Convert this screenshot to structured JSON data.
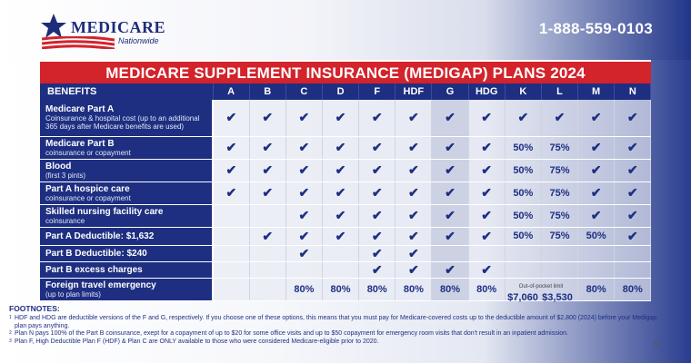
{
  "header": {
    "logo_name": "MEDICARE",
    "logo_sub": "Nationwide",
    "phone": "1-888-559-0103",
    "title": "MEDICARE SUPPLEMENT INSURANCE (MEDIGAP) PLANS 2024"
  },
  "table": {
    "benefits_header": "BENEFITS",
    "plans": [
      "A",
      "B",
      "C",
      "D",
      "F",
      "HDF",
      "G",
      "HDG",
      "K",
      "L",
      "M",
      "N"
    ],
    "rows": [
      {
        "title": "Medicare Part A",
        "sub": "Coinsurance & hospital cost (up to an additional 365 days after Medicare benefits are used)",
        "cells": [
          "✔",
          "✔",
          "✔",
          "✔",
          "✔",
          "✔",
          "✔",
          "✔",
          "✔",
          "✔",
          "✔",
          "✔"
        ]
      },
      {
        "title": "Medicare Part B",
        "sub": "coinsurance or copayment",
        "cells": [
          "✔",
          "✔",
          "✔",
          "✔",
          "✔",
          "✔",
          "✔",
          "✔",
          "50%",
          "75%",
          "✔",
          "✔"
        ]
      },
      {
        "title": "Blood",
        "sub": "(first 3 pints)",
        "cells": [
          "✔",
          "✔",
          "✔",
          "✔",
          "✔",
          "✔",
          "✔",
          "✔",
          "50%",
          "75%",
          "✔",
          "✔"
        ]
      },
      {
        "title": "Part A hospice care",
        "sub": "coinsurance or copayment",
        "cells": [
          "✔",
          "✔",
          "✔",
          "✔",
          "✔",
          "✔",
          "✔",
          "✔",
          "50%",
          "75%",
          "✔",
          "✔"
        ]
      },
      {
        "title": "Skilled nursing facility care",
        "sub": "coinsurance",
        "cells": [
          "",
          "",
          "✔",
          "✔",
          "✔",
          "✔",
          "✔",
          "✔",
          "50%",
          "75%",
          "✔",
          "✔"
        ]
      },
      {
        "title": "Part A Deductible: $1,632",
        "sub": "",
        "cells": [
          "",
          "✔",
          "✔",
          "✔",
          "✔",
          "✔",
          "✔",
          "✔",
          "50%",
          "75%",
          "50%",
          "✔"
        ]
      },
      {
        "title": "Part B Deductible: $240",
        "sub": "",
        "cells": [
          "",
          "",
          "✔",
          "",
          "✔",
          "✔",
          "",
          "",
          "",
          "",
          "",
          ""
        ]
      },
      {
        "title": "Part B excess charges",
        "sub": "",
        "cells": [
          "",
          "",
          "",
          "",
          "✔",
          "✔",
          "✔",
          "✔",
          "",
          "",
          "",
          ""
        ]
      },
      {
        "title": "Foreign travel emergency",
        "sub": "(up to plan limits)",
        "cells": [
          "",
          "",
          "80%",
          "80%",
          "80%",
          "80%",
          "80%",
          "80%",
          "",
          "",
          "80%",
          "80%"
        ]
      }
    ]
  },
  "out_of_pocket": {
    "label": "Out-of-pocket limit",
    "k": "$7,060",
    "l": "$3,530"
  },
  "footnotes": {
    "title": "FOOTNOTES:",
    "items": [
      {
        "num": "1",
        "text": "HDF and HDG are deductible versions of the F and G, respectively. If you choose one of these options, this means that you must pay for Medicare-covered costs up to the deductible amount of $2,800 (2024) before your Medigap plan pays anything."
      },
      {
        "num": "2",
        "text": "Plan N pays 100% of the Part B coinsurance, exept for a copayment of up to $20 for some office visits and up to $50 copayment for emergency room visits that don't result in an inpatient admission."
      },
      {
        "num": "3",
        "text": "Plan F, High Deductible Plan F (HDF) & Plan C are ONLY available to those who were considered Medicare-eligible prior to 2020."
      }
    ]
  },
  "copyright": "©",
  "colors": {
    "navy": "#1e2f82",
    "red": "#d3232b"
  }
}
